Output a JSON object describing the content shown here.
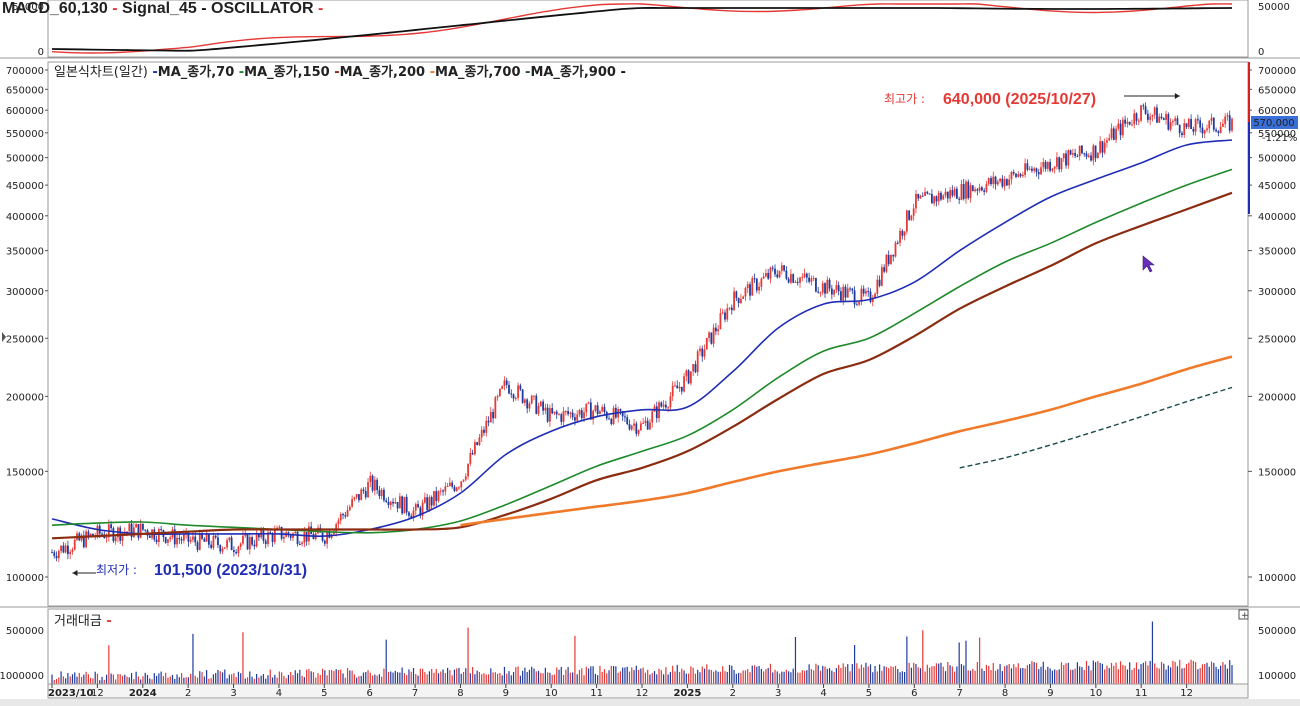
{
  "colors": {
    "up": "#e53935",
    "down": "#1e3a9f",
    "ma70": "#1f2db5",
    "ma150": "#1e8a2a",
    "ma200": "#8b2c10",
    "ma700": "#f07a2a",
    "ma900": "#1a4a4a",
    "macd": "#e53935",
    "signal": "#111111",
    "grid": "#bbbbbb",
    "axisline": "#888888"
  },
  "macd_panel": {
    "legend": [
      {
        "text": "MACD_60,130",
        "color": "#e53935"
      },
      {
        "text": "Signal_45",
        "color": "#111111"
      },
      {
        "text": "OSCILLATOR",
        "color": "#e53935"
      }
    ],
    "ticks": [
      "0",
      "50000"
    ],
    "left_tick_top": "50000"
  },
  "price_panel": {
    "legend_prefix": "일본식차트(일간)",
    "legend_items": [
      {
        "text": "MA_종가,70",
        "color": "#1f2db5"
      },
      {
        "text": "MA_종가,150",
        "color": "#1e8a2a"
      },
      {
        "text": "MA_종가,200",
        "color": "#8b2c10"
      },
      {
        "text": "MA_종가,700",
        "color": "#f07a2a"
      },
      {
        "text": "MA_종가,900",
        "color": "#1a4a4a"
      }
    ],
    "left_ticks": [
      "700000",
      "650000",
      "600000",
      "550000",
      "500000",
      "450000",
      "400000",
      "350000",
      "300000",
      "250000",
      "200000",
      "150000",
      "100000"
    ],
    "right_ticks": [
      "700000",
      "650000",
      "600000",
      "550000",
      "500000",
      "450000",
      "400000",
      "350000",
      "300000",
      "250000",
      "200000",
      "150000",
      "100000"
    ],
    "current_price": "570,000",
    "current_change": "-1.21%",
    "high_label": "최고가 :",
    "high_value": "640,000 (2025/10/27)",
    "low_label": "최저가 :",
    "low_value": "101,500 (2023/10/31)"
  },
  "volume_panel": {
    "legend": "거래대금",
    "left_ticks": [
      "500000",
      "1000000"
    ],
    "right_ticks": [
      "500000",
      "100000"
    ]
  },
  "x_axis": {
    "labels": [
      "2023/10",
      "12",
      "2024",
      "2",
      "3",
      "4",
      "5",
      "6",
      "7",
      "8",
      "9",
      "10",
      "11",
      "12",
      "2025",
      "2",
      "3",
      "4",
      "5",
      "6",
      "7",
      "8",
      "9",
      "10",
      "11",
      "12"
    ]
  },
  "chart_data": {
    "type": "line",
    "title": "",
    "y_scale": "log",
    "ylim": [
      80000,
      720000
    ],
    "x_range": [
      "2023-10",
      "2025-12"
    ],
    "annotations": [
      {
        "text": "최고가 : 640,000 (2025/10/27)",
        "date": "2025/10/27",
        "value": 640000
      },
      {
        "text": "최저가 : 101,500 (2023/10/31)",
        "date": "2023/10/31",
        "value": 101500
      }
    ],
    "x": [
      "2023-10",
      "2023-11",
      "2023-12",
      "2024-01",
      "2024-02",
      "2024-03",
      "2024-04",
      "2024-05",
      "2024-06",
      "2024-07",
      "2024-08",
      "2024-09",
      "2024-10",
      "2024-11",
      "2024-12",
      "2025-01",
      "2025-02",
      "2025-03",
      "2025-04",
      "2025-05",
      "2025-06",
      "2025-07",
      "2025-08",
      "2025-09",
      "2025-10",
      "2025-11",
      "2025-12"
    ],
    "series": [
      {
        "name": "종가",
        "values": [
          110000,
          118000,
          120000,
          115000,
          113000,
          118000,
          117000,
          143000,
          128000,
          145000,
          210000,
          185000,
          190000,
          178000,
          215000,
          290000,
          325000,
          305000,
          290000,
          420000,
          440000,
          460000,
          490000,
          515000,
          600000,
          560000,
          570000
        ]
      },
      {
        "name": "MA_종가,70",
        "values": [
          125000,
          120000,
          118000,
          118000,
          118000,
          118000,
          117000,
          120000,
          126000,
          138000,
          160000,
          175000,
          185000,
          190000,
          192000,
          220000,
          260000,
          285000,
          290000,
          310000,
          350000,
          390000,
          430000,
          460000,
          490000,
          525000,
          535000
        ]
      },
      {
        "name": "MA_종가,150",
        "values": [
          122000,
          123000,
          123500,
          122000,
          121000,
          120000,
          119000,
          118500,
          120000,
          124000,
          132000,
          142000,
          153000,
          162000,
          172000,
          190000,
          215000,
          238000,
          250000,
          275000,
          305000,
          335000,
          360000,
          390000,
          420000,
          450000,
          478000
        ]
      },
      {
        "name": "MA_종가,200",
        "values": [
          116000,
          117000,
          118000,
          119000,
          120000,
          120000,
          120000,
          120000,
          120000,
          121000,
          127000,
          135000,
          145000,
          152000,
          162000,
          178000,
          198000,
          218000,
          230000,
          252000,
          280000,
          305000,
          330000,
          360000,
          385000,
          410000,
          437000
        ]
      },
      {
        "name": "MA_종가,700",
        "values": [
          null,
          null,
          null,
          null,
          null,
          null,
          null,
          null,
          null,
          122000,
          125000,
          128000,
          131000,
          134000,
          138000,
          144000,
          150000,
          155000,
          160000,
          167000,
          175000,
          182000,
          190000,
          200000,
          210000,
          222000,
          233000
        ]
      },
      {
        "name": "MA_종가,900",
        "values": [
          null,
          null,
          null,
          null,
          null,
          null,
          null,
          null,
          null,
          null,
          null,
          null,
          null,
          null,
          null,
          null,
          null,
          null,
          null,
          null,
          152000,
          158000,
          166000,
          175000,
          185000,
          196000,
          207000
        ]
      }
    ]
  }
}
